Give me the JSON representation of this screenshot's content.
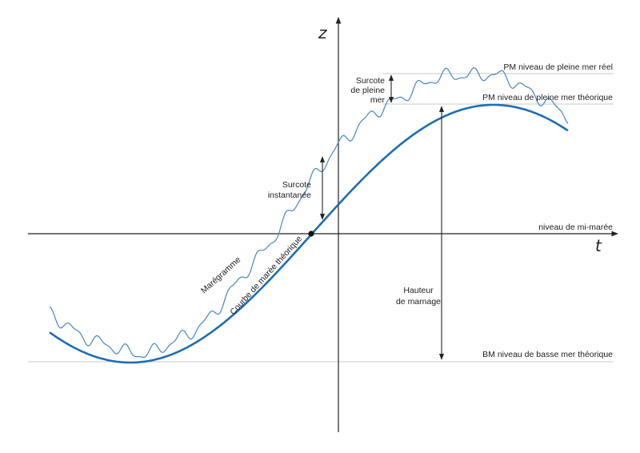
{
  "axes": {
    "vertical_label": "z",
    "horizontal_label": "t"
  },
  "levels": {
    "pm_real": "PM niveau de pleine mer réel",
    "pm_theoretical": "PM niveau de pleine mer théorique",
    "mid_tide": "niveau de mi-marée",
    "bm_theoretical": "BM niveau de basse mer théorique"
  },
  "annotations": {
    "surcote_pleine_mer": [
      "Surcote",
      "de pleine",
      "mer"
    ],
    "surcote_instantanee": [
      "Surcote",
      "instantanée"
    ],
    "hauteur_marnage": [
      "Hauteur",
      "de marnage"
    ]
  },
  "curves": {
    "theoretical": "Courbe de marée théorique",
    "maregramme": "Marégramme"
  },
  "colors": {
    "theoretical_curve": "#1f6db3",
    "maregramme": "#4a86bf",
    "axes": "#222222",
    "reference_lines": "#c8c8c8"
  }
}
